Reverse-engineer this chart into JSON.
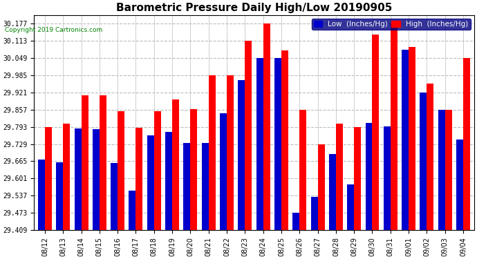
{
  "title": "Barometric Pressure Daily High/Low 20190905",
  "copyright": "Copyright 2019 Cartronics.com",
  "legend_low": "Low  (Inches/Hg)",
  "legend_high": "High  (Inches/Hg)",
  "dates": [
    "08/12",
    "08/13",
    "08/14",
    "08/15",
    "08/16",
    "08/17",
    "08/18",
    "08/19",
    "08/20",
    "08/21",
    "08/22",
    "08/23",
    "08/24",
    "08/25",
    "08/26",
    "08/27",
    "08/28",
    "08/29",
    "08/30",
    "08/31",
    "09/01",
    "09/02",
    "09/03",
    "09/04"
  ],
  "low_values": [
    29.672,
    29.661,
    29.788,
    29.784,
    29.659,
    29.557,
    29.762,
    29.775,
    29.734,
    29.734,
    29.843,
    29.967,
    30.049,
    30.05,
    29.473,
    29.533,
    29.693,
    29.579,
    29.808,
    29.795,
    30.081,
    29.921,
    29.857,
    29.745
  ],
  "high_values": [
    29.793,
    29.805,
    29.91,
    29.91,
    29.852,
    29.789,
    29.85,
    29.894,
    29.858,
    29.985,
    29.985,
    30.113,
    30.177,
    30.077,
    29.857,
    29.727,
    29.804,
    29.793,
    30.137,
    30.177,
    30.089,
    29.953,
    29.857,
    30.049
  ],
  "ylim_min": 29.409,
  "ylim_max": 30.209,
  "yticks": [
    29.409,
    29.473,
    29.537,
    29.601,
    29.665,
    29.729,
    29.793,
    29.857,
    29.921,
    29.985,
    30.049,
    30.113,
    30.177
  ],
  "bar_width": 0.38,
  "low_color": "#0000cc",
  "high_color": "#ff0000",
  "bg_color": "#ffffff",
  "grid_color": "#bbbbbb",
  "title_fontsize": 11,
  "tick_fontsize": 7,
  "legend_fontsize": 7.5,
  "copyright_fontsize": 6.5
}
